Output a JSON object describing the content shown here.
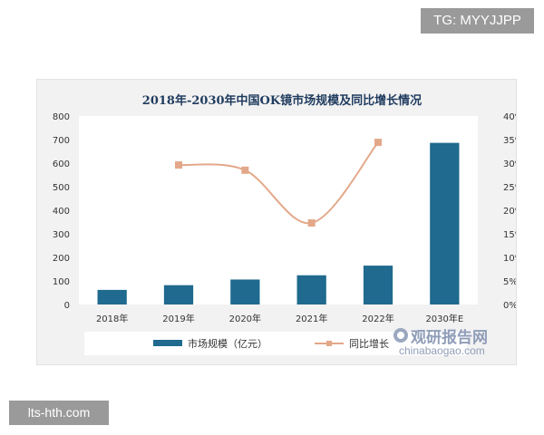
{
  "badges": {
    "top_right": "TG: MYYJJPP",
    "bottom_left": "lts-hth.com"
  },
  "watermark": {
    "name": "观研报告网",
    "url": "chinabaogao.com"
  },
  "colors": {
    "bar": "#1f6a8e",
    "line": "#e3a889",
    "title": "#1f3b5e",
    "frame_bg": "#f2f2f2",
    "plot_bg": "#ffffff",
    "axis_text": "#333333"
  },
  "chart_data": {
    "type": "bar",
    "title": "2018年-2030年中国OK镜市场规模及同比增长情况",
    "categories": [
      "2018年",
      "2019年",
      "2020年",
      "2021年",
      "2022年",
      "2030年E"
    ],
    "series": [
      {
        "name": "市场规模（亿元）",
        "type": "bar",
        "axis": "left",
        "values": [
          62,
          82,
          106,
          124,
          165,
          686
        ]
      },
      {
        "name": "同比增长",
        "type": "line",
        "axis": "right",
        "values": [
          null,
          0.296,
          0.285,
          0.173,
          0.344,
          null
        ]
      }
    ],
    "y_left": {
      "range": [
        0,
        800
      ],
      "ticks": [
        "0",
        "100",
        "200",
        "300",
        "400",
        "500",
        "600",
        "700",
        "800"
      ]
    },
    "y_right": {
      "range": [
        0,
        0.4
      ],
      "ticks": [
        "0%",
        "5%",
        "10%",
        "15%",
        "20%",
        "25%",
        "30%",
        "35%",
        "40%"
      ]
    },
    "grid": false,
    "legend_position": "bottom"
  }
}
